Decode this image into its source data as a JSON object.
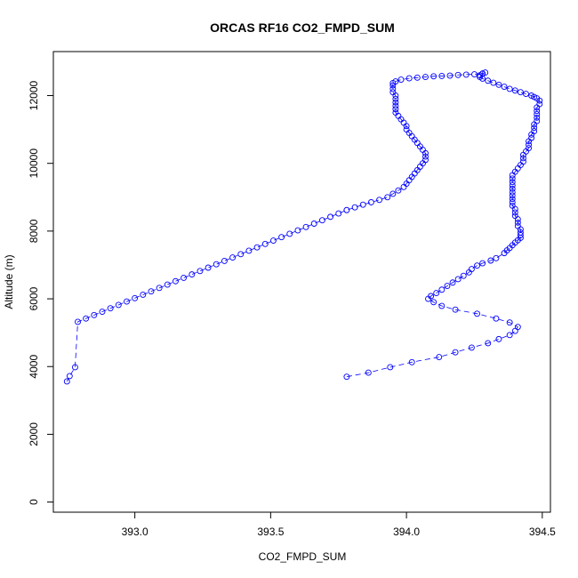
{
  "chart_data": {
    "type": "scatter",
    "title": "ORCAS RF16 CO2_FMPD_SUM",
    "xlabel": "CO2_FMPD_SUM",
    "ylabel": "Altitude (m)",
    "xlim": [
      392.7,
      394.53
    ],
    "ylim": [
      -300,
      13300
    ],
    "xticks": [
      393.0,
      393.5,
      394.0,
      394.5
    ],
    "xtick_labels": [
      "393.0",
      "393.5",
      "394.0",
      "394.5"
    ],
    "yticks": [
      0,
      2000,
      4000,
      6000,
      8000,
      10000,
      12000
    ],
    "ytick_labels": [
      "0",
      "2000",
      "4000",
      "6000",
      "8000",
      "10000",
      "12000"
    ],
    "grid": false,
    "marker": "open-circle",
    "colors": {
      "series": "#0000ff",
      "axes": "#000000",
      "background": "#ffffff"
    },
    "series": [
      {
        "style": "points-and-dashed-line",
        "points": [
          [
            393.78,
            3700
          ],
          [
            393.86,
            3820
          ],
          [
            393.94,
            3980
          ],
          [
            394.02,
            4130
          ],
          [
            394.12,
            4280
          ],
          [
            394.18,
            4420
          ],
          [
            394.24,
            4560
          ],
          [
            394.3,
            4690
          ],
          [
            394.34,
            4810
          ],
          [
            394.38,
            4930
          ],
          [
            394.4,
            5050
          ],
          [
            394.41,
            5170
          ],
          [
            394.38,
            5300
          ],
          [
            394.33,
            5420
          ],
          [
            394.26,
            5560
          ],
          [
            394.18,
            5680
          ],
          [
            394.13,
            5790
          ],
          [
            394.1,
            5900
          ],
          [
            394.08,
            6000
          ],
          [
            394.09,
            6080
          ],
          [
            394.11,
            6170
          ],
          [
            394.13,
            6270
          ],
          [
            394.15,
            6380
          ],
          [
            394.17,
            6480
          ],
          [
            394.19,
            6580
          ],
          [
            394.21,
            6680
          ],
          [
            394.23,
            6780
          ],
          [
            394.24,
            6880
          ],
          [
            394.26,
            6980
          ],
          [
            394.28,
            7050
          ],
          [
            394.31,
            7130
          ],
          [
            394.33,
            7200
          ],
          [
            394.36,
            7350
          ],
          [
            394.37,
            7430
          ],
          [
            394.38,
            7500
          ],
          [
            394.39,
            7580
          ],
          [
            394.4,
            7660
          ],
          [
            394.41,
            7730
          ],
          [
            394.42,
            7800
          ],
          [
            394.42,
            7880
          ],
          [
            394.42,
            7960
          ],
          [
            394.42,
            8050
          ],
          [
            394.41,
            8150
          ],
          [
            394.41,
            8250
          ],
          [
            394.41,
            8350
          ],
          [
            394.4,
            8450
          ],
          [
            394.4,
            8550
          ],
          [
            394.4,
            8650
          ],
          [
            394.39,
            8750
          ],
          [
            394.39,
            8850
          ],
          [
            394.39,
            8950
          ],
          [
            394.39,
            9050
          ],
          [
            394.39,
            9150
          ],
          [
            394.39,
            9250
          ],
          [
            394.39,
            9350
          ],
          [
            394.39,
            9450
          ],
          [
            394.39,
            9550
          ],
          [
            394.39,
            9650
          ],
          [
            394.4,
            9750
          ],
          [
            394.41,
            9850
          ],
          [
            394.42,
            9950
          ],
          [
            394.43,
            10050
          ],
          [
            394.43,
            10150
          ],
          [
            394.43,
            10250
          ],
          [
            394.44,
            10350
          ],
          [
            394.45,
            10450
          ],
          [
            394.45,
            10550
          ],
          [
            394.45,
            10650
          ],
          [
            394.46,
            10750
          ],
          [
            394.46,
            10850
          ],
          [
            394.47,
            10950
          ],
          [
            394.47,
            11050
          ],
          [
            394.47,
            11150
          ],
          [
            394.48,
            11250
          ],
          [
            394.48,
            11350
          ],
          [
            394.48,
            11450
          ],
          [
            394.48,
            11550
          ],
          [
            394.48,
            11650
          ],
          [
            394.49,
            11750
          ],
          [
            394.49,
            11850
          ],
          [
            394.48,
            11920
          ],
          [
            394.47,
            11960
          ],
          [
            394.46,
            12000
          ],
          [
            394.44,
            12050
          ],
          [
            394.42,
            12100
          ],
          [
            394.4,
            12150
          ],
          [
            394.38,
            12200
          ],
          [
            394.36,
            12260
          ],
          [
            394.34,
            12320
          ],
          [
            394.32,
            12380
          ],
          [
            394.3,
            12440
          ],
          [
            394.28,
            12500
          ],
          [
            394.27,
            12550
          ],
          [
            394.27,
            12600
          ],
          [
            394.28,
            12650
          ],
          [
            394.29,
            12680
          ],
          [
            394.28,
            12650
          ],
          [
            394.25,
            12630
          ],
          [
            394.22,
            12620
          ],
          [
            394.19,
            12610
          ],
          [
            394.16,
            12590
          ],
          [
            394.13,
            12580
          ],
          [
            394.1,
            12570
          ],
          [
            394.07,
            12550
          ],
          [
            394.04,
            12530
          ],
          [
            394.01,
            12510
          ],
          [
            393.98,
            12470
          ],
          [
            393.96,
            12420
          ],
          [
            393.95,
            12370
          ],
          [
            393.95,
            12300
          ],
          [
            393.95,
            12200
          ],
          [
            393.95,
            12100
          ],
          [
            393.96,
            12000
          ],
          [
            393.96,
            11900
          ],
          [
            393.96,
            11800
          ],
          [
            393.96,
            11700
          ],
          [
            393.96,
            11600
          ],
          [
            393.96,
            11500
          ],
          [
            393.97,
            11400
          ],
          [
            393.98,
            11300
          ],
          [
            393.99,
            11200
          ],
          [
            394.0,
            11100
          ],
          [
            394.0,
            11000
          ],
          [
            394.01,
            10900
          ],
          [
            394.02,
            10800
          ],
          [
            394.03,
            10700
          ],
          [
            394.04,
            10600
          ],
          [
            394.05,
            10500
          ],
          [
            394.06,
            10400
          ],
          [
            394.07,
            10300
          ],
          [
            394.07,
            10200
          ],
          [
            394.07,
            10100
          ],
          [
            394.06,
            10000
          ],
          [
            394.05,
            9900
          ],
          [
            394.04,
            9800
          ],
          [
            394.03,
            9700
          ],
          [
            394.02,
            9600
          ],
          [
            394.01,
            9500
          ],
          [
            394.0,
            9400
          ],
          [
            393.99,
            9300
          ],
          [
            393.97,
            9200
          ],
          [
            393.95,
            9100
          ],
          [
            393.93,
            9000
          ],
          [
            393.9,
            8920
          ],
          [
            393.87,
            8850
          ],
          [
            393.84,
            8780
          ],
          [
            393.81,
            8700
          ],
          [
            393.78,
            8620
          ],
          [
            393.75,
            8520
          ],
          [
            393.72,
            8420
          ],
          [
            393.69,
            8320
          ],
          [
            393.66,
            8220
          ],
          [
            393.63,
            8120
          ],
          [
            393.6,
            8020
          ],
          [
            393.57,
            7920
          ],
          [
            393.54,
            7820
          ],
          [
            393.51,
            7720
          ],
          [
            393.48,
            7620
          ],
          [
            393.45,
            7520
          ],
          [
            393.42,
            7420
          ],
          [
            393.39,
            7320
          ],
          [
            393.36,
            7220
          ],
          [
            393.33,
            7120
          ],
          [
            393.3,
            7020
          ],
          [
            393.27,
            6920
          ],
          [
            393.24,
            6820
          ],
          [
            393.21,
            6720
          ],
          [
            393.18,
            6620
          ],
          [
            393.15,
            6520
          ],
          [
            393.12,
            6420
          ],
          [
            393.09,
            6320
          ],
          [
            393.06,
            6220
          ],
          [
            393.03,
            6120
          ],
          [
            393.0,
            6020
          ],
          [
            392.97,
            5920
          ],
          [
            392.94,
            5820
          ],
          [
            392.91,
            5720
          ],
          [
            392.88,
            5620
          ],
          [
            392.85,
            5520
          ],
          [
            392.82,
            5420
          ],
          [
            392.79,
            5320
          ],
          [
            392.78,
            3980
          ],
          [
            392.76,
            3720
          ],
          [
            392.75,
            3560
          ]
        ]
      }
    ]
  }
}
